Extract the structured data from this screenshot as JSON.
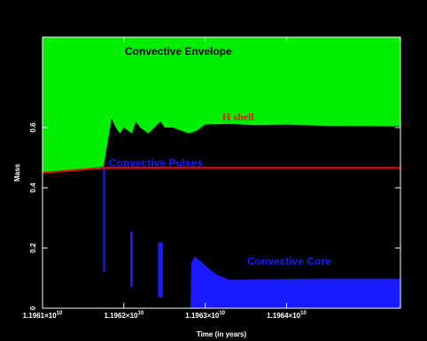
{
  "chart_data": {
    "type": "area",
    "xlabel": "Time (in years)",
    "ylabel": "Mass",
    "xlim": [
      11961000000,
      11965400000
    ],
    "ylim": [
      0,
      0.9
    ],
    "x_ticks": [
      {
        "value": 11961000000,
        "label_base": "1.1961×10",
        "label_exp": "10"
      },
      {
        "value": 11962000000,
        "label_base": "1.1962×10",
        "label_exp": "10"
      },
      {
        "value": 11963000000,
        "label_base": "1.1963×10",
        "label_exp": "10"
      },
      {
        "value": 11964000000,
        "label_base": "1.1964×10",
        "label_exp": "10"
      }
    ],
    "y_ticks": [
      {
        "value": 0,
        "label": "0"
      },
      {
        "value": 0.2,
        "label": "0.2"
      },
      {
        "value": 0.4,
        "label": "0.4"
      },
      {
        "value": 0.6,
        "label": "0.6"
      }
    ],
    "grid": false,
    "annotations": [
      {
        "text": "Convective Envelope",
        "color": "#000000"
      },
      {
        "text": "H shell",
        "color": "#ee1111"
      },
      {
        "text": "Convective Pulses",
        "color": "#1a1aff"
      },
      {
        "text": "Convective Core",
        "color": "#1a1aff"
      }
    ],
    "series": [
      {
        "name": "Convective Envelope",
        "kind": "area-top",
        "color": "#00ee00",
        "x": [
          11961000000,
          11961750000,
          11961850000,
          11961900000,
          11961950000,
          11962000000,
          11962100000,
          11962150000,
          11962200000,
          11962300000,
          11962450000,
          11962500000,
          11962600000,
          11962800000,
          11962900000,
          11963000000,
          11963300000,
          11963600000,
          11964000000,
          11964500000,
          11965400000
        ],
        "y": [
          0.45,
          0.47,
          0.63,
          0.6,
          0.58,
          0.6,
          0.58,
          0.62,
          0.6,
          0.58,
          0.62,
          0.6,
          0.6,
          0.58,
          0.59,
          0.61,
          0.612,
          0.608,
          0.61,
          0.605,
          0.604
        ]
      },
      {
        "name": "H shell",
        "kind": "line",
        "color": "#ee1111",
        "x": [
          11961000000,
          11961750000,
          11965400000
        ],
        "y": [
          0.45,
          0.466,
          0.466
        ]
      },
      {
        "name": "Convective Pulses",
        "kind": "bands",
        "color": "#1a1aff",
        "bands": [
          {
            "x": [
              11961745000,
              11961760000
            ],
            "y": [
              0.12,
              0.466
            ]
          },
          {
            "x": [
              11962080000,
              11962110000
            ],
            "y": [
              0.07,
              0.255
            ]
          },
          {
            "x": [
              11962420000,
              11962480000
            ],
            "y": [
              0.035,
              0.22
            ]
          }
        ]
      },
      {
        "name": "Convective Core",
        "kind": "area-bottom",
        "color": "#1a1aff",
        "x": [
          11962820000,
          11962830000,
          11962870000,
          11962950000,
          11963050000,
          11963150000,
          11963300000,
          11963600000,
          11964000000,
          11964500000,
          11965400000
        ],
        "y": [
          0.02,
          0.15,
          0.172,
          0.155,
          0.13,
          0.11,
          0.095,
          0.096,
          0.097,
          0.098,
          0.098
        ]
      }
    ]
  }
}
